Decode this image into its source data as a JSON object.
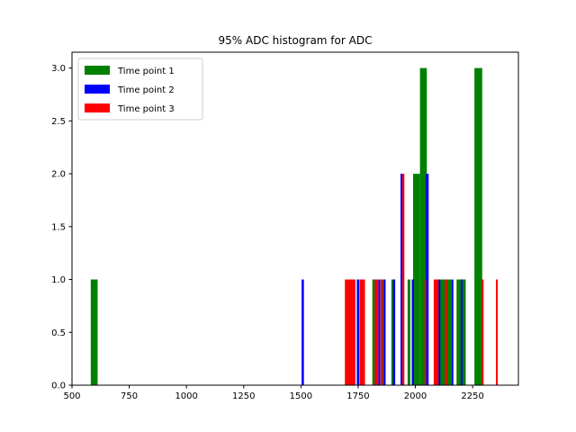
{
  "chart_data": {
    "type": "bar",
    "title": "95% ADC histogram for ADC",
    "xlabel": "",
    "ylabel": "",
    "xlim": [
      500,
      2450
    ],
    "ylim": [
      0,
      3.15
    ],
    "x_ticks": [
      500,
      750,
      1000,
      1250,
      1500,
      1750,
      2000,
      2250
    ],
    "x_tick_labels": [
      "500",
      "750",
      "1000",
      "1250",
      "1500",
      "1750",
      "2000",
      "2250"
    ],
    "y_ticks": [
      0,
      0.5,
      1,
      1.5,
      2,
      2.5,
      3
    ],
    "y_tick_labels": [
      "0.0",
      "0.5",
      "1.0",
      "1.5",
      "2.0",
      "2.5",
      "3.0"
    ],
    "grid": false,
    "legend_position": "upper-left",
    "series": [
      {
        "name": "Time point 1",
        "color": "#008000",
        "bins": [
          {
            "x0": 582,
            "x1": 612,
            "count": 1
          },
          {
            "x0": 1812,
            "x1": 1826,
            "count": 1
          },
          {
            "x0": 1857,
            "x1": 1868,
            "count": 1
          },
          {
            "x0": 1895,
            "x1": 1909,
            "count": 1
          },
          {
            "x0": 1966,
            "x1": 1978,
            "count": 1
          },
          {
            "x0": 1990,
            "x1": 2020,
            "count": 2
          },
          {
            "x0": 2020,
            "x1": 2050,
            "count": 3
          },
          {
            "x0": 2100,
            "x1": 2128,
            "count": 1
          },
          {
            "x0": 2128,
            "x1": 2158,
            "count": 1
          },
          {
            "x0": 2180,
            "x1": 2220,
            "count": 1
          },
          {
            "x0": 2258,
            "x1": 2292,
            "count": 3
          }
        ]
      },
      {
        "name": "Time point 2",
        "color": "#0000ff",
        "bins": [
          {
            "x0": 1503,
            "x1": 1513,
            "count": 1
          },
          {
            "x0": 1744,
            "x1": 1756,
            "count": 1
          },
          {
            "x0": 1838,
            "x1": 1847,
            "count": 1
          },
          {
            "x0": 1862,
            "x1": 1870,
            "count": 1
          },
          {
            "x0": 1902,
            "x1": 1912,
            "count": 1
          },
          {
            "x0": 1935,
            "x1": 1943,
            "count": 2
          },
          {
            "x0": 1984,
            "x1": 1994,
            "count": 1
          },
          {
            "x0": 2046,
            "x1": 2058,
            "count": 2
          },
          {
            "x0": 2101,
            "x1": 2109,
            "count": 1
          },
          {
            "x0": 2158,
            "x1": 2166,
            "count": 1
          },
          {
            "x0": 2198,
            "x1": 2206,
            "count": 1
          }
        ]
      },
      {
        "name": "Time point 3",
        "color": "#ff0000",
        "bins": [
          {
            "x0": 1692,
            "x1": 1738,
            "count": 1
          },
          {
            "x0": 1758,
            "x1": 1780,
            "count": 1
          },
          {
            "x0": 1822,
            "x1": 1838,
            "count": 1
          },
          {
            "x0": 1848,
            "x1": 1858,
            "count": 1
          },
          {
            "x0": 1943,
            "x1": 1952,
            "count": 2
          },
          {
            "x0": 2040,
            "x1": 2047,
            "count": 1
          },
          {
            "x0": 2080,
            "x1": 2101,
            "count": 1
          },
          {
            "x0": 2128,
            "x1": 2138,
            "count": 1
          },
          {
            "x0": 2290,
            "x1": 2298,
            "count": 1
          },
          {
            "x0": 2352,
            "x1": 2360,
            "count": 1
          }
        ]
      }
    ]
  }
}
